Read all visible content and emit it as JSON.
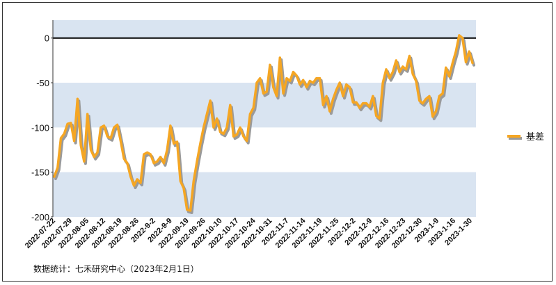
{
  "chart_data": {
    "type": "line",
    "title": "",
    "xlabel": "",
    "ylabel": "",
    "ylim": [
      -200,
      20
    ],
    "yticks": [
      0,
      -50,
      -100,
      -150,
      -200
    ],
    "grid": "alternating horizontal bands",
    "legend_position": "right",
    "colors": {
      "line": "#f5a623",
      "shadow": "#9a9a9a",
      "band": "#d9e4f1",
      "zero_line": "#000000"
    },
    "x_tick_labels": [
      "2022-07-22",
      "2022-07-29",
      "2022-08-05",
      "2022-08-12",
      "2022-08-19",
      "2022-08-26",
      "2022-9-2",
      "2022-9-9",
      "2022-09-19",
      "2022-09-26",
      "2022-10-10",
      "2022-10-17",
      "2022-10-24",
      "2022-10-31",
      "2022-11-7",
      "2022-11-14",
      "2022-11-19",
      "2022-11-25",
      "2022-12-2",
      "2022-12-9",
      "2022-12-16",
      "2022-12-23",
      "2022-12-30",
      "2023-1-9",
      "2023-1-16",
      "2023-1-30"
    ],
    "series": [
      {
        "name": "基差",
        "values": [
          -155,
          -145,
          -112,
          -107,
          -96,
          -95,
          -115,
          -68,
          -120,
          -138,
          -85,
          -125,
          -133,
          -128,
          -100,
          -98,
          -110,
          -112,
          -100,
          -97,
          -115,
          -135,
          -140,
          -155,
          -165,
          -158,
          -162,
          -130,
          -128,
          -130,
          -140,
          -138,
          -133,
          -140,
          -125,
          -98,
          -118,
          -116,
          -160,
          -168,
          -192,
          -193,
          -160,
          -138,
          -118,
          -100,
          -85,
          -70,
          -100,
          -90,
          -105,
          -107,
          -100,
          -75,
          -110,
          -108,
          -100,
          -110,
          -115,
          -85,
          -78,
          -50,
          -45,
          -62,
          -60,
          -30,
          -55,
          -65,
          -22,
          -62,
          -45,
          -48,
          -38,
          -42,
          -52,
          -47,
          -55,
          -48,
          -50,
          -45,
          -45,
          -75,
          -65,
          -82,
          -68,
          -58,
          -50,
          -65,
          -52,
          -55,
          -72,
          -72,
          -78,
          -73,
          -73,
          -77,
          -65,
          -87,
          -90,
          -50,
          -35,
          -45,
          -38,
          -25,
          -38,
          -32,
          -35,
          -20,
          -40,
          -48,
          -70,
          -73,
          -68,
          -65,
          -88,
          -82,
          -65,
          -62,
          -33,
          -43,
          -28,
          -15,
          3,
          0,
          -27,
          -15,
          -28
        ]
      }
    ]
  },
  "source_text": "数据统计：七禾研究中心（2023年2月1日）"
}
